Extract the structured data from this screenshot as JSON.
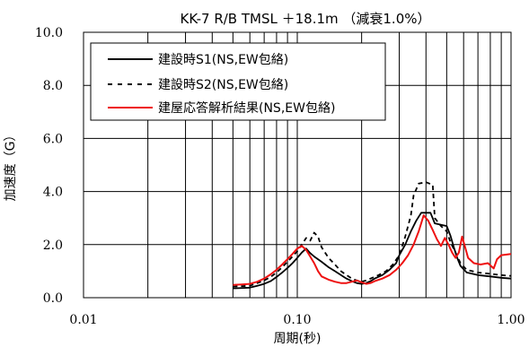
{
  "chart_data": {
    "type": "line",
    "title": "KK-7 R/B TMSL ＋18.1m （減衰1.0%）",
    "xlabel": "周期(秒)",
    "ylabel": "加速度（G）",
    "xscale": "log",
    "xlim": [
      0.01,
      1.0
    ],
    "ylim": [
      0.0,
      10.0
    ],
    "x_ticks": [
      {
        "value": 0.01,
        "label": "0.01"
      },
      {
        "value": 0.1,
        "label": "0.10"
      },
      {
        "value": 1.0,
        "label": "1.00"
      }
    ],
    "y_ticks": [
      {
        "value": 0,
        "label": "0.0"
      },
      {
        "value": 2,
        "label": "2.0"
      },
      {
        "value": 4,
        "label": "4.0"
      },
      {
        "value": 6,
        "label": "6.0"
      },
      {
        "value": 8,
        "label": "8.0"
      },
      {
        "value": 10,
        "label": "10.0"
      }
    ],
    "grid": true,
    "legend_position": "top-left",
    "series": [
      {
        "name": "建設時S1(NS,EW包絡)",
        "color": "#000000",
        "style": "solid",
        "points": [
          [
            0.05,
            0.35
          ],
          [
            0.06,
            0.38
          ],
          [
            0.065,
            0.45
          ],
          [
            0.07,
            0.52
          ],
          [
            0.075,
            0.62
          ],
          [
            0.08,
            0.78
          ],
          [
            0.085,
            0.95
          ],
          [
            0.09,
            1.12
          ],
          [
            0.095,
            1.3
          ],
          [
            0.1,
            1.5
          ],
          [
            0.105,
            1.7
          ],
          [
            0.11,
            1.85
          ],
          [
            0.115,
            1.68
          ],
          [
            0.12,
            1.55
          ],
          [
            0.13,
            1.35
          ],
          [
            0.14,
            1.15
          ],
          [
            0.15,
            1.0
          ],
          [
            0.16,
            0.85
          ],
          [
            0.17,
            0.72
          ],
          [
            0.18,
            0.62
          ],
          [
            0.19,
            0.55
          ],
          [
            0.2,
            0.52
          ],
          [
            0.21,
            0.55
          ],
          [
            0.22,
            0.62
          ],
          [
            0.23,
            0.72
          ],
          [
            0.25,
            0.85
          ],
          [
            0.27,
            1.05
          ],
          [
            0.29,
            1.3
          ],
          [
            0.3,
            1.6
          ],
          [
            0.32,
            2.0
          ],
          [
            0.34,
            2.5
          ],
          [
            0.36,
            2.9
          ],
          [
            0.38,
            3.2
          ],
          [
            0.42,
            3.2
          ],
          [
            0.44,
            2.8
          ],
          [
            0.5,
            2.7
          ],
          [
            0.52,
            2.35
          ],
          [
            0.54,
            1.9
          ],
          [
            0.56,
            1.5
          ],
          [
            0.58,
            1.2
          ],
          [
            0.62,
            0.95
          ],
          [
            0.7,
            0.85
          ],
          [
            0.8,
            0.8
          ],
          [
            0.9,
            0.75
          ],
          [
            1.0,
            0.72
          ]
        ]
      },
      {
        "name": "建設時S2(NS,EW包絡)",
        "color": "#000000",
        "style": "dashed",
        "points": [
          [
            0.05,
            0.42
          ],
          [
            0.06,
            0.45
          ],
          [
            0.065,
            0.55
          ],
          [
            0.07,
            0.65
          ],
          [
            0.075,
            0.78
          ],
          [
            0.08,
            0.95
          ],
          [
            0.085,
            1.15
          ],
          [
            0.09,
            1.35
          ],
          [
            0.095,
            1.55
          ],
          [
            0.1,
            1.75
          ],
          [
            0.105,
            2.0
          ],
          [
            0.11,
            2.25
          ],
          [
            0.115,
            2.15
          ],
          [
            0.12,
            2.45
          ],
          [
            0.125,
            2.3
          ],
          [
            0.13,
            1.9
          ],
          [
            0.14,
            1.5
          ],
          [
            0.15,
            1.25
          ],
          [
            0.16,
            1.0
          ],
          [
            0.17,
            0.85
          ],
          [
            0.18,
            0.72
          ],
          [
            0.19,
            0.65
          ],
          [
            0.2,
            0.6
          ],
          [
            0.21,
            0.65
          ],
          [
            0.22,
            0.72
          ],
          [
            0.24,
            0.85
          ],
          [
            0.26,
            1.0
          ],
          [
            0.28,
            1.25
          ],
          [
            0.3,
            1.6
          ],
          [
            0.32,
            2.3
          ],
          [
            0.34,
            3.1
          ],
          [
            0.35,
            3.85
          ],
          [
            0.37,
            4.3
          ],
          [
            0.4,
            4.35
          ],
          [
            0.43,
            4.25
          ],
          [
            0.44,
            3.0
          ],
          [
            0.47,
            2.7
          ],
          [
            0.5,
            2.5
          ],
          [
            0.52,
            2.1
          ],
          [
            0.55,
            1.7
          ],
          [
            0.58,
            1.3
          ],
          [
            0.62,
            1.05
          ],
          [
            0.7,
            0.95
          ],
          [
            0.8,
            0.9
          ],
          [
            0.9,
            0.85
          ],
          [
            1.0,
            0.82
          ]
        ]
      },
      {
        "name": "建屋応答解析結果(NS,EW包絡)",
        "color": "#ee1111",
        "style": "solid",
        "points": [
          [
            0.05,
            0.48
          ],
          [
            0.055,
            0.5
          ],
          [
            0.06,
            0.52
          ],
          [
            0.065,
            0.6
          ],
          [
            0.07,
            0.72
          ],
          [
            0.075,
            0.88
          ],
          [
            0.08,
            1.05
          ],
          [
            0.085,
            1.25
          ],
          [
            0.09,
            1.45
          ],
          [
            0.095,
            1.65
          ],
          [
            0.1,
            1.85
          ],
          [
            0.105,
            1.95
          ],
          [
            0.11,
            1.8
          ],
          [
            0.115,
            1.55
          ],
          [
            0.12,
            1.3
          ],
          [
            0.125,
            1.0
          ],
          [
            0.13,
            0.8
          ],
          [
            0.14,
            0.68
          ],
          [
            0.15,
            0.6
          ],
          [
            0.16,
            0.55
          ],
          [
            0.17,
            0.55
          ],
          [
            0.18,
            0.6
          ],
          [
            0.19,
            0.65
          ],
          [
            0.2,
            0.58
          ],
          [
            0.21,
            0.52
          ],
          [
            0.22,
            0.55
          ],
          [
            0.23,
            0.62
          ],
          [
            0.25,
            0.72
          ],
          [
            0.27,
            0.85
          ],
          [
            0.29,
            1.05
          ],
          [
            0.31,
            1.3
          ],
          [
            0.33,
            1.6
          ],
          [
            0.35,
            2.0
          ],
          [
            0.37,
            2.5
          ],
          [
            0.39,
            3.1
          ],
          [
            0.41,
            2.9
          ],
          [
            0.43,
            2.55
          ],
          [
            0.45,
            2.2
          ],
          [
            0.47,
            1.95
          ],
          [
            0.49,
            2.25
          ],
          [
            0.51,
            2.0
          ],
          [
            0.53,
            1.7
          ],
          [
            0.55,
            1.5
          ],
          [
            0.57,
            1.7
          ],
          [
            0.59,
            2.3
          ],
          [
            0.61,
            1.9
          ],
          [
            0.63,
            1.5
          ],
          [
            0.67,
            1.3
          ],
          [
            0.72,
            1.25
          ],
          [
            0.78,
            1.3
          ],
          [
            0.83,
            1.1
          ],
          [
            0.86,
            1.45
          ],
          [
            0.9,
            1.6
          ],
          [
            1.0,
            1.65
          ]
        ]
      }
    ]
  }
}
